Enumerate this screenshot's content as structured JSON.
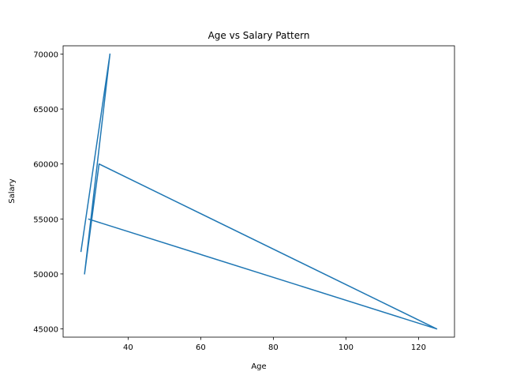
{
  "chart_data": {
    "type": "line",
    "title": "Age vs Salary Pattern",
    "xlabel": "Age",
    "ylabel": "Salary",
    "xlim": [
      22.1,
      129.9
    ],
    "ylim": [
      44250,
      70750
    ],
    "xticks": [
      40,
      60,
      80,
      100,
      120
    ],
    "yticks": [
      45000,
      50000,
      55000,
      60000,
      65000,
      70000
    ],
    "grid": false,
    "series": [
      {
        "color": "#1f77b4",
        "points": [
          {
            "x": 27,
            "y": 52000
          },
          {
            "x": 35,
            "y": 70000
          },
          {
            "x": 28,
            "y": 50000
          },
          {
            "x": 32,
            "y": 60000
          },
          {
            "x": 125,
            "y": 45000
          },
          {
            "x": 29,
            "y": 55000
          }
        ]
      }
    ]
  }
}
